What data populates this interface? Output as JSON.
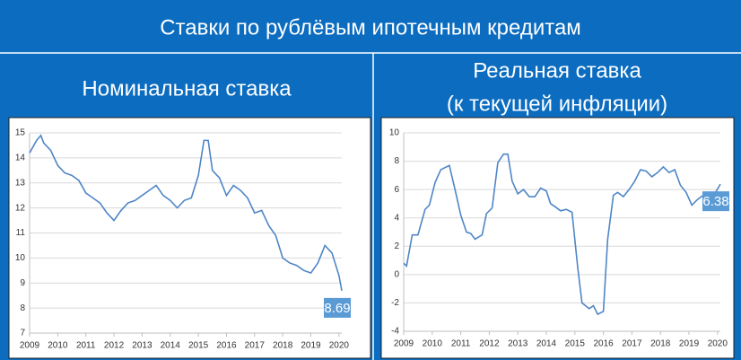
{
  "page_title": "Ставки по рублёвым ипотечным кредитам",
  "chart_data": [
    {
      "type": "line",
      "title": "Номинальная ставка",
      "x": [
        2009.0,
        2009.25,
        2009.4,
        2009.5,
        2009.75,
        2010.0,
        2010.25,
        2010.5,
        2010.75,
        2011.0,
        2011.25,
        2011.5,
        2011.75,
        2012.0,
        2012.25,
        2012.5,
        2012.75,
        2013.0,
        2013.25,
        2013.5,
        2013.75,
        2014.0,
        2014.25,
        2014.5,
        2014.75,
        2015.0,
        2015.2,
        2015.35,
        2015.5,
        2015.75,
        2016.0,
        2016.25,
        2016.5,
        2016.75,
        2017.0,
        2017.25,
        2017.5,
        2017.75,
        2018.0,
        2018.25,
        2018.5,
        2018.75,
        2019.0,
        2019.25,
        2019.5,
        2019.75,
        2020.0,
        2020.1
      ],
      "series": [
        {
          "color": "#4f86c6",
          "values": [
            14.2,
            14.7,
            14.9,
            14.6,
            14.3,
            13.7,
            13.4,
            13.3,
            13.1,
            12.6,
            12.4,
            12.2,
            11.8,
            11.5,
            11.9,
            12.2,
            12.3,
            12.5,
            12.7,
            12.9,
            12.5,
            12.3,
            12.0,
            12.3,
            12.4,
            13.3,
            14.7,
            14.7,
            13.5,
            13.2,
            12.5,
            12.9,
            12.7,
            12.4,
            11.8,
            11.9,
            11.3,
            10.9,
            10.0,
            9.8,
            9.7,
            9.5,
            9.4,
            9.8,
            10.5,
            10.2,
            9.3,
            8.69
          ],
          "value_labels": [
            null,
            null,
            null,
            null,
            null,
            null,
            null,
            null,
            null,
            null,
            null,
            null,
            null,
            null,
            null,
            null,
            null,
            null,
            null,
            null,
            null,
            null,
            null,
            null,
            null,
            null,
            null,
            null,
            null,
            null,
            null,
            null,
            null,
            null,
            null,
            null,
            null,
            null,
            null,
            null,
            null,
            null,
            null,
            null,
            null,
            null,
            null,
            "8.69"
          ]
        }
      ],
      "xlim": [
        2009,
        2020.1
      ],
      "xticks": [
        2009,
        2010,
        2011,
        2012,
        2013,
        2014,
        2015,
        2016,
        2017,
        2018,
        2019,
        2020
      ],
      "ylim": [
        7,
        15
      ],
      "yticks": [
        7,
        8,
        9,
        10,
        11,
        12,
        13,
        14,
        15
      ],
      "grid": true
    },
    {
      "type": "line",
      "title": "Реальная ставка",
      "subtitle": "(к текущей инфляции)",
      "x": [
        2009.0,
        2009.1,
        2009.3,
        2009.5,
        2009.75,
        2009.9,
        2010.1,
        2010.3,
        2010.5,
        2010.6,
        2010.8,
        2011.0,
        2011.2,
        2011.35,
        2011.5,
        2011.75,
        2011.9,
        2012.1,
        2012.3,
        2012.5,
        2012.65,
        2012.8,
        2013.0,
        2013.2,
        2013.4,
        2013.6,
        2013.8,
        2014.0,
        2014.15,
        2014.3,
        2014.5,
        2014.7,
        2014.9,
        2015.1,
        2015.25,
        2015.5,
        2015.65,
        2015.8,
        2016.0,
        2016.15,
        2016.35,
        2016.5,
        2016.7,
        2016.9,
        2017.1,
        2017.3,
        2017.5,
        2017.7,
        2017.9,
        2018.1,
        2018.3,
        2018.5,
        2018.7,
        2018.9,
        2019.1,
        2019.3,
        2019.5,
        2019.7,
        2019.9,
        2020.1
      ],
      "series": [
        {
          "color": "#4f86c6",
          "values": [
            0.8,
            0.6,
            2.8,
            2.8,
            4.6,
            4.9,
            6.5,
            7.4,
            7.6,
            7.7,
            6.0,
            4.2,
            3.0,
            2.9,
            2.5,
            2.8,
            4.3,
            4.7,
            7.9,
            8.5,
            8.5,
            6.6,
            5.7,
            6.0,
            5.5,
            5.5,
            6.1,
            5.9,
            5.0,
            4.8,
            4.5,
            4.6,
            4.4,
            0.5,
            -2.0,
            -2.4,
            -2.2,
            -2.8,
            -2.6,
            2.5,
            5.6,
            5.8,
            5.5,
            6.0,
            6.6,
            7.4,
            7.3,
            6.9,
            7.2,
            7.6,
            7.2,
            7.4,
            6.3,
            5.8,
            4.9,
            5.3,
            5.6,
            5.6,
            5.7,
            6.38
          ],
          "value_labels": [
            null,
            null,
            null,
            null,
            null,
            null,
            null,
            null,
            null,
            null,
            null,
            null,
            null,
            null,
            null,
            null,
            null,
            null,
            null,
            null,
            null,
            null,
            null,
            null,
            null,
            null,
            null,
            null,
            null,
            null,
            null,
            null,
            null,
            null,
            null,
            null,
            null,
            null,
            null,
            null,
            null,
            null,
            null,
            null,
            null,
            null,
            null,
            null,
            null,
            null,
            null,
            null,
            null,
            null,
            null,
            null,
            null,
            null,
            null,
            "6.38"
          ]
        }
      ],
      "xlim": [
        2009,
        2020.1
      ],
      "xticks": [
        2009,
        2010,
        2011,
        2012,
        2013,
        2014,
        2015,
        2016,
        2017,
        2018,
        2019,
        2020
      ],
      "ylim": [
        -4,
        10
      ],
      "yticks": [
        -4,
        -2,
        0,
        2,
        4,
        6,
        8,
        10
      ],
      "grid": true
    }
  ]
}
